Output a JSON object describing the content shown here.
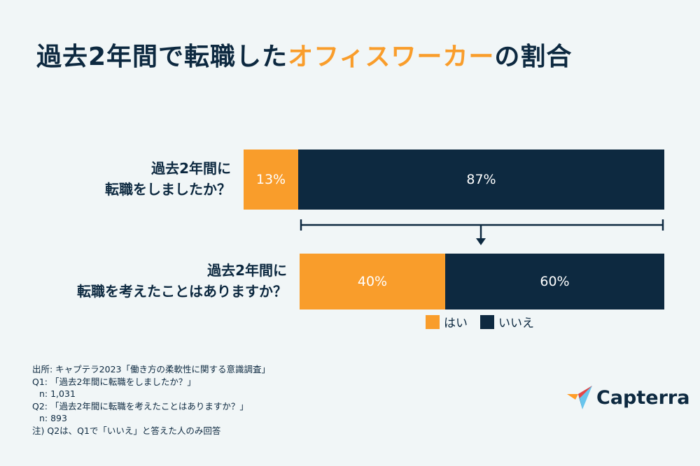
{
  "title": {
    "main": "過去2年間で転職した",
    "accent": "オフィスワーカー",
    "tail": "の割合"
  },
  "colors": {
    "yes": "#f99d2b",
    "no": "#0d2940",
    "background": "#f1f6f7"
  },
  "chart_data": {
    "type": "bar",
    "orientation": "horizontal-stacked",
    "title": "過去2年間で転職したオフィスワーカーの割合",
    "categories": [
      "過去2年間に転職をしましたか？",
      "過去2年間に転職を考えたことはありますか？"
    ],
    "category_lines": [
      [
        "過去2年間に",
        "転職をしましたか？"
      ],
      [
        "過去2年間に",
        "転職を考えたことはありますか？"
      ]
    ],
    "series": [
      {
        "name": "はい",
        "values": [
          13,
          40
        ],
        "labels": [
          "13%",
          "40%"
        ]
      },
      {
        "name": "いいえ",
        "values": [
          87,
          60
        ],
        "labels": [
          "87%",
          "60%"
        ]
      }
    ],
    "unit": "%",
    "annotation": "Q2 base = Q1 いいえ respondents",
    "legend": {
      "position": "bottom-right",
      "entries": [
        "はい",
        "いいえ"
      ]
    }
  },
  "notes": [
    "出所: キャプテラ2023「働き方の柔軟性に関する意識調査」",
    "Q1: 「過去2年間に転職をしましたか？」",
    "n: 1,031",
    "Q2: 「過去2年間に転職を考えたことはありますか？」",
    "n: 893",
    "注) Q2は、Q1で「いいえ」と答えた人のみ回答"
  ],
  "logo": {
    "text": "Capterra"
  }
}
